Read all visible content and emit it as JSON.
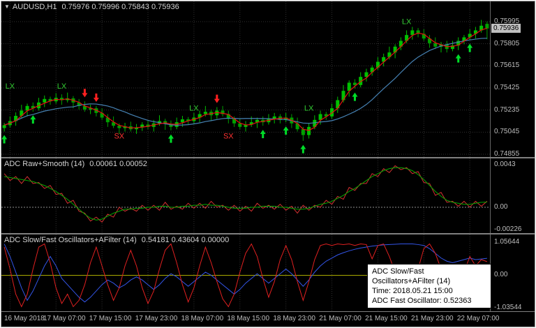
{
  "colors": {
    "grid": "#303030",
    "background": "#000000",
    "axis_text": "#BEBEBE",
    "header_text": "#D4D4D4",
    "separator": "#808080",
    "price_tag_bg": "#C0C0C0"
  },
  "main_chart": {
    "header": {
      "dropdown_glyph": "▼",
      "symbol": "AUDUSD,H1",
      "ohlc": "0.75976 0.75996 0.75843 0.75936"
    },
    "axis": {
      "current_price": "0.75936"
    }
  },
  "indicator1": {
    "header": {
      "name": "ADC Raw+Smooth (14)",
      "values": "0.00061 0.00052"
    }
  },
  "indicator2": {
    "header": {
      "name": "ADC Slow/Fast Oscillators+AFilter (14)",
      "values": "0.54181 0.43604 0.00000"
    },
    "tooltip": {
      "lines": [
        "ADC Slow/Fast",
        "Oscillators+AFilter (14)",
        "Time: 2018.05.21 15:00",
        "ADC Fast Oscillator: 0.52363"
      ]
    }
  },
  "time_axis": {
    "labels": [
      "16 May 2018",
      "17 May 07:00",
      "17 May 15:00",
      "17 May 23:00",
      "18 May 07:00",
      "18 May 15:00",
      "18 May 23:00",
      "21 May 07:00",
      "21 May 15:00",
      "21 May 23:00",
      "22 May 07:00"
    ]
  },
  "chart_data": [
    {
      "type": "candlestick",
      "title": "AUDUSD,H1",
      "axis_ticks": [
        "0.75995",
        "0.75805",
        "0.75615",
        "0.75425",
        "0.75235",
        "0.75045",
        "0.74855"
      ],
      "ylim": [
        0.74855,
        0.7614
      ],
      "scale": {
        "v1": 0.74855,
        "y1": 219,
        "v2": 0.75995,
        "y2": 29
      },
      "grid_bars": [
        1,
        9,
        17,
        25,
        33,
        41,
        49,
        57,
        65,
        73,
        81
      ],
      "colors": {
        "up": "#00C000",
        "down": "#00A000",
        "arrow_up": "#00DC28",
        "arrow_down": "#FF2020"
      },
      "ma": {
        "fast": {
          "period": 3,
          "color": "#E81010"
        },
        "slow": {
          "period": 13,
          "color": "#4682B4"
        }
      },
      "candles": [
        [
          0.7508,
          0.75125,
          0.7505,
          0.75105
        ],
        [
          0.75105,
          0.7518,
          0.75085,
          0.7514
        ],
        [
          0.7514,
          0.75215,
          0.751,
          0.75185
        ],
        [
          0.75185,
          0.7528,
          0.75165,
          0.7523
        ],
        [
          0.7523,
          0.7529,
          0.7518,
          0.7527
        ],
        [
          0.7527,
          0.753,
          0.7522,
          0.7525
        ],
        [
          0.7525,
          0.7534,
          0.7523,
          0.753
        ],
        [
          0.753,
          0.7536,
          0.7526,
          0.7533
        ],
        [
          0.7533,
          0.7535,
          0.7528,
          0.7531
        ],
        [
          0.7531,
          0.7538,
          0.7529,
          0.7534
        ],
        [
          0.7534,
          0.7537,
          0.7528,
          0.7532
        ],
        [
          0.7532,
          0.75385,
          0.753,
          0.75335
        ],
        [
          0.75335,
          0.75355,
          0.7525,
          0.753
        ],
        [
          0.753,
          0.7533,
          0.7524,
          0.7527
        ],
        [
          0.7527,
          0.7531,
          0.7522,
          0.7524
        ],
        [
          0.7524,
          0.7528,
          0.752,
          0.7525
        ],
        [
          0.7525,
          0.7527,
          0.7518,
          0.7521
        ],
        [
          0.7521,
          0.7525,
          0.7515,
          0.7517
        ],
        [
          0.7517,
          0.752,
          0.7509,
          0.7513
        ],
        [
          0.7513,
          0.7518,
          0.7508,
          0.751
        ],
        [
          0.751,
          0.7512,
          0.7503,
          0.7508
        ],
        [
          0.7508,
          0.75125,
          0.7505,
          0.75095
        ],
        [
          0.75095,
          0.75135,
          0.7505,
          0.7507
        ],
        [
          0.7507,
          0.75115,
          0.7503,
          0.75085
        ],
        [
          0.75085,
          0.7513,
          0.75055,
          0.7511
        ],
        [
          0.7511,
          0.7515,
          0.7507,
          0.7509
        ],
        [
          0.7509,
          0.7515,
          0.7505,
          0.7512
        ],
        [
          0.7512,
          0.7519,
          0.751,
          0.7514
        ],
        [
          0.7514,
          0.7516,
          0.75065,
          0.75115
        ],
        [
          0.75115,
          0.75145,
          0.7506,
          0.7509
        ],
        [
          0.7509,
          0.7517,
          0.7507,
          0.7513
        ],
        [
          0.7513,
          0.75185,
          0.7509,
          0.75155
        ],
        [
          0.75155,
          0.75175,
          0.7511,
          0.7514
        ],
        [
          0.7514,
          0.7521,
          0.7512,
          0.7517
        ],
        [
          0.7517,
          0.7523,
          0.7513,
          0.752
        ],
        [
          0.752,
          0.7527,
          0.7518,
          0.7522
        ],
        [
          0.7522,
          0.7524,
          0.7514,
          0.7519
        ],
        [
          0.7519,
          0.7526,
          0.7516,
          0.7523
        ],
        [
          0.7523,
          0.7527,
          0.7518,
          0.752
        ],
        [
          0.752,
          0.7523,
          0.7512,
          0.7516
        ],
        [
          0.7516,
          0.7518,
          0.7509,
          0.7512
        ],
        [
          0.7512,
          0.7516,
          0.7507,
          0.7509
        ],
        [
          0.7509,
          0.7514,
          0.7505,
          0.7511
        ],
        [
          0.7511,
          0.7518,
          0.7509,
          0.7513
        ],
        [
          0.7513,
          0.7517,
          0.7508,
          0.7515
        ],
        [
          0.7515,
          0.7518,
          0.751,
          0.7513
        ],
        [
          0.7513,
          0.752,
          0.7511,
          0.7516
        ],
        [
          0.7516,
          0.7521,
          0.7512,
          0.7518
        ],
        [
          0.7518,
          0.752,
          0.7512,
          0.7515
        ],
        [
          0.7515,
          0.7521,
          0.7513,
          0.7517
        ],
        [
          0.7517,
          0.752,
          0.7508,
          0.7512
        ],
        [
          0.7512,
          0.7517,
          0.7505,
          0.7507
        ],
        [
          0.7507,
          0.7509,
          0.7497,
          0.7502
        ],
        [
          0.7502,
          0.7512,
          0.7499,
          0.7509
        ],
        [
          0.7509,
          0.7519,
          0.7507,
          0.7515
        ],
        [
          0.7515,
          0.7523,
          0.7511,
          0.752
        ],
        [
          0.752,
          0.7522,
          0.7515,
          0.7518
        ],
        [
          0.7518,
          0.7529,
          0.7516,
          0.7525
        ],
        [
          0.7525,
          0.7535,
          0.7521,
          0.7532
        ],
        [
          0.7532,
          0.7545,
          0.753,
          0.754
        ],
        [
          0.754,
          0.7549,
          0.7535,
          0.7547
        ],
        [
          0.7547,
          0.755,
          0.7542,
          0.7545
        ],
        [
          0.7545,
          0.7556,
          0.7543,
          0.7552
        ],
        [
          0.7552,
          0.7559,
          0.7548,
          0.7556
        ],
        [
          0.7556,
          0.7562,
          0.7553,
          0.756
        ],
        [
          0.756,
          0.7569,
          0.7558,
          0.7565
        ],
        [
          0.7565,
          0.7572,
          0.7561,
          0.7569
        ],
        [
          0.7569,
          0.7578,
          0.7567,
          0.7573
        ],
        [
          0.7573,
          0.758,
          0.7568,
          0.7578
        ],
        [
          0.7578,
          0.7586,
          0.7575,
          0.7583
        ],
        [
          0.7583,
          0.7592,
          0.7581,
          0.7588
        ],
        [
          0.7588,
          0.7595,
          0.7584,
          0.7592
        ],
        [
          0.7592,
          0.7594,
          0.7586,
          0.7589
        ],
        [
          0.7589,
          0.7593,
          0.7583,
          0.7585
        ],
        [
          0.7585,
          0.7588,
          0.7577,
          0.7581
        ],
        [
          0.7581,
          0.7586,
          0.7576,
          0.7578
        ],
        [
          0.7578,
          0.7582,
          0.7573,
          0.758
        ],
        [
          0.758,
          0.7583,
          0.7573,
          0.7576
        ],
        [
          0.7576,
          0.7583,
          0.7574,
          0.7579
        ],
        [
          0.7579,
          0.7586,
          0.7575,
          0.7583
        ],
        [
          0.7583,
          0.7588,
          0.758,
          0.7586
        ],
        [
          0.7586,
          0.7593,
          0.7584,
          0.7589
        ],
        [
          0.7589,
          0.7595,
          0.7585,
          0.7592
        ],
        [
          0.7592,
          0.7601,
          0.759,
          0.7596
        ],
        [
          0.75976,
          0.75996,
          0.75843,
          0.75936
        ]
      ],
      "signals": [
        {
          "bar": 0,
          "dir": "up",
          "price": 0.7502
        },
        {
          "bar": 5,
          "dir": "up",
          "price": 0.7519
        },
        {
          "bar": 14,
          "dir": "down",
          "price": 0.75345
        },
        {
          "bar": 16,
          "dir": "down",
          "price": 0.75305
        },
        {
          "bar": 29,
          "dir": "up",
          "price": 0.75025
        },
        {
          "bar": 37,
          "dir": "down",
          "price": 0.75295
        },
        {
          "bar": 45,
          "dir": "up",
          "price": 0.75065
        },
        {
          "bar": 49,
          "dir": "up",
          "price": 0.75095
        },
        {
          "bar": 52,
          "dir": "up",
          "price": 0.74935
        },
        {
          "bar": 61,
          "dir": "up",
          "price": 0.75385
        },
        {
          "bar": 79,
          "dir": "up",
          "price": 0.75715
        },
        {
          "bar": 81,
          "dir": "up",
          "price": 0.75805
        }
      ],
      "labels": [
        {
          "bar": 1,
          "text": "LX",
          "price": 0.7542,
          "color": "#32CD32"
        },
        {
          "bar": 10,
          "text": "LX",
          "price": 0.7542,
          "color": "#32CD32"
        },
        {
          "bar": 20,
          "text": "SX",
          "price": 0.7499,
          "color": "#FF3232"
        },
        {
          "bar": 33,
          "text": "LX",
          "price": 0.7523,
          "color": "#32CD32"
        },
        {
          "bar": 39,
          "text": "SX",
          "price": 0.7499,
          "color": "#FF3232"
        },
        {
          "bar": 53,
          "text": "LX",
          "price": 0.7523,
          "color": "#32CD32"
        },
        {
          "bar": 70,
          "text": "LX",
          "price": 0.75975,
          "color": "#32CD32"
        }
      ]
    },
    {
      "type": "line",
      "title": "ADC Raw+Smooth (14)",
      "axis_ticks": [
        "0.0043",
        "0.00",
        "-0.00226"
      ],
      "ylim": [
        -0.00226,
        0.0043
      ],
      "scale": {
        "v1": -0.00226,
        "y1": 102,
        "v2": 0.0043,
        "y2": 9
      },
      "zero_line": {
        "color": "#909090",
        "dash": "2,2"
      },
      "series": [
        {
          "name": "ADC Raw",
          "color": "#D23030",
          "values": [
            0.0034,
            0.0027,
            0.0031,
            0.0024,
            0.0031,
            0.0024,
            0.0025,
            0.0019,
            0.0022,
            0.0013,
            0.0014,
            0.0004,
            0.0007,
            -0.0004,
            -0.0006,
            -0.0014,
            -0.001,
            -0.0015,
            -0.0007,
            -0.001,
            0.0,
            -0.0004,
            -0.0001,
            -0.0004,
            0.0002,
            -0.0003,
            0.0002,
            -0.0003,
            0.0005,
            -0.0002,
            0.0001,
            -0.0002,
            0.0004,
            -0.0001,
            0.0004,
            -0.0001,
            0.0006,
            0.0,
            0.0002,
            -0.0003,
            0.0002,
            -0.0004,
            0.0001,
            -0.0004,
            0.0004,
            -0.0001,
            0.0002,
            -0.0002,
            0.0003,
            -0.0003,
            0.0001,
            -0.0006,
            0.0002,
            -0.0003,
            0.0002,
            0.0,
            0.0007,
            0.0003,
            0.0011,
            0.0008,
            0.002,
            0.0017,
            0.0024,
            0.0024,
            0.0034,
            0.0031,
            0.0039,
            0.0035,
            0.0042,
            0.0038,
            0.004,
            0.0034,
            0.0036,
            0.0025,
            0.0024,
            0.0012,
            0.0015,
            0.0005,
            0.0006,
            0.0001,
            0.0006,
            0.0,
            0.0006,
            0.0001,
            0.00061
          ]
        },
        {
          "name": "ADC Smooth",
          "color": "#00A800",
          "values": [
            0.0031,
            0.003,
            0.0029,
            0.0028,
            0.0027,
            0.0026,
            0.0024,
            0.0022,
            0.0019,
            0.0016,
            0.0012,
            0.0008,
            0.0003,
            -0.0002,
            -0.0007,
            -0.0011,
            -0.0013,
            -0.0012,
            -0.0009,
            -0.0006,
            -0.0004,
            -0.0002,
            -0.0002,
            -0.0001,
            -0.0001,
            0.0,
            0.0,
            0.0001,
            0.0001,
            0.0,
            0.0,
            0.0001,
            0.0001,
            0.0002,
            0.0002,
            0.0003,
            0.0002,
            0.0002,
            0.0001,
            0.0,
            -0.0001,
            -0.0001,
            -0.0001,
            0.0,
            0.0,
            0.0001,
            0.0001,
            0.0001,
            0.0,
            0.0,
            -0.0001,
            -0.0002,
            -0.0002,
            -0.0001,
            0.0001,
            0.0003,
            0.0004,
            0.0006,
            0.0009,
            0.0012,
            0.0016,
            0.0019,
            0.0023,
            0.0027,
            0.0031,
            0.0034,
            0.0037,
            0.0039,
            0.004,
            0.004,
            0.0039,
            0.0037,
            0.0033,
            0.0028,
            0.0022,
            0.0016,
            0.0011,
            0.0007,
            0.0005,
            0.0004,
            0.0003,
            0.0003,
            0.0004,
            0.0005,
            0.00052
          ]
        }
      ]
    },
    {
      "type": "line",
      "title": "ADC Slow/Fast Oscillators+AFilter (14)",
      "axis_ticks": [
        "1.05644",
        "0.00",
        "-1.03544"
      ],
      "ylim": [
        -1.03544,
        1.05644
      ],
      "scale": {
        "v1": -1.03544,
        "y1": 105,
        "v2": 1.05644,
        "y2": 11
      },
      "zero_line": {
        "color": "#A9A900",
        "dash": ""
      },
      "series": [
        {
          "name": "ADC Slow Oscillator",
          "color": "#3355E8",
          "values": [
            1.0,
            0.6,
            0.1,
            -0.4,
            -0.8,
            -0.5,
            -0.1,
            0.3,
            0.6,
            0.3,
            -0.1,
            -0.3,
            -0.5,
            -0.7,
            -0.85,
            -0.7,
            -0.5,
            -0.3,
            -0.15,
            -0.25,
            -0.4,
            -0.3,
            -0.15,
            -0.05,
            -0.15,
            -0.3,
            -0.45,
            -0.3,
            -0.1,
            0.05,
            -0.05,
            -0.2,
            -0.35,
            -0.2,
            -0.05,
            0.1,
            0.0,
            -0.15,
            -0.3,
            -0.45,
            -0.6,
            -0.45,
            -0.25,
            -0.1,
            0.05,
            -0.1,
            -0.25,
            -0.1,
            0.05,
            0.2,
            0.05,
            -0.15,
            -0.35,
            -0.15,
            0.1,
            0.3,
            0.45,
            0.55,
            0.65,
            0.72,
            0.78,
            0.83,
            0.87,
            0.9,
            0.93,
            0.95,
            0.97,
            0.98,
            0.99,
            1.0,
            1.0,
            1.0,
            0.98,
            0.95,
            0.85,
            0.7,
            0.55,
            0.45,
            0.4,
            0.45,
            0.5,
            0.55,
            0.5,
            0.52,
            0.54181
          ]
        },
        {
          "name": "ADC Fast Oscillator",
          "color": "#E02020",
          "values": [
            0.9,
            0.2,
            -0.6,
            -1.0,
            -0.6,
            0.2,
            0.9,
            1.0,
            0.4,
            -0.4,
            -0.9,
            -0.6,
            -1.0,
            -0.8,
            -0.3,
            0.4,
            0.9,
            0.3,
            -0.3,
            -0.8,
            -0.4,
            0.3,
            0.8,
            0.3,
            -0.4,
            -0.9,
            -0.5,
            0.2,
            0.8,
            1.0,
            0.4,
            -0.3,
            -0.85,
            -0.4,
            0.3,
            0.9,
            0.4,
            -0.2,
            -0.75,
            -1.0,
            -0.6,
            0.1,
            0.7,
            1.0,
            0.6,
            -0.1,
            -0.7,
            -0.2,
            0.5,
            0.95,
            0.5,
            -0.2,
            -0.8,
            -0.2,
            0.5,
            0.95,
            1.0,
            0.95,
            1.0,
            0.98,
            1.0,
            0.95,
            1.0,
            0.98,
            0.52363,
            0.95,
            1.0,
            0.6,
            0.1,
            -0.5,
            -1.0,
            -0.55,
            0.2,
            0.85,
            1.0,
            0.7,
            0.2,
            -0.4,
            -1.0,
            -0.6,
            0.1,
            0.6,
            0.3,
            0.5,
            0.43604
          ]
        }
      ]
    }
  ]
}
